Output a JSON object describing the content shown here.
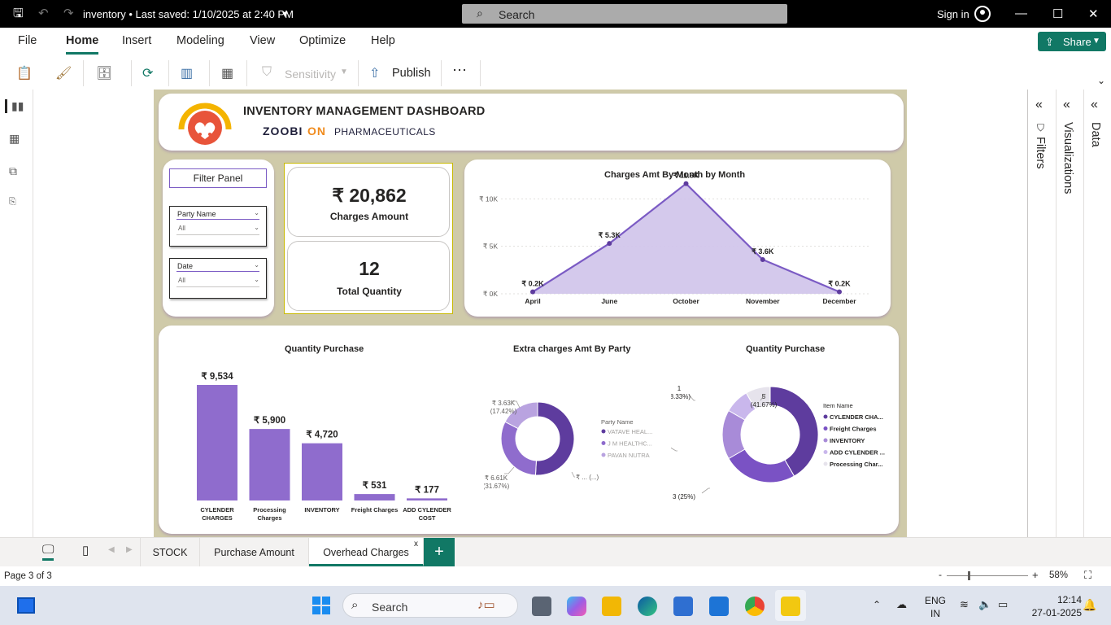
{
  "titlebar": {
    "doc_title": "inventory • Last saved: 1/10/2025 at 2:40 PM",
    "search_placeholder": "Search",
    "signin": "Sign in"
  },
  "ribbon": {
    "menu": [
      "File",
      "Home",
      "Insert",
      "Modeling",
      "View",
      "Optimize",
      "Help"
    ],
    "active_menu": "Home",
    "share_label": "Share",
    "sensitivity_label": "Sensitivity",
    "publish_label": "Publish"
  },
  "report": {
    "title": "INVENTORY MANAGEMENT DASHBOARD",
    "brand_part1": "ZOOBI",
    "brand_part2": "ON",
    "brand_part3": "PHARMACEUTICALS",
    "filter_panel_title": "Filter Panel",
    "slicers": [
      {
        "label": "Party Name",
        "value": "All"
      },
      {
        "label": "Date",
        "value": "All"
      }
    ],
    "kpis": [
      {
        "value": "₹ 20,862",
        "label": "Charges Amount"
      },
      {
        "value": "12",
        "label": "Total Quantity"
      }
    ]
  },
  "chart_data": [
    {
      "type": "area",
      "title": "Charges Amt By Month by Month",
      "categories": [
        "April",
        "June",
        "October",
        "November",
        "December"
      ],
      "values": [
        0.2,
        5.3,
        11.6,
        3.6,
        0.2
      ],
      "data_labels": [
        "₹ 0.2K",
        "₹ 5.3K",
        "₹ 11.6K",
        "₹ 3.6K",
        "₹ 0.2K"
      ],
      "y_ticks": [
        "₹ 0K",
        "₹ 5K",
        "₹ 10K"
      ],
      "y_tick_values": [
        0,
        5,
        10
      ],
      "ylim": [
        0,
        12
      ],
      "grid": true,
      "color": "#7b5bc4"
    },
    {
      "type": "bar",
      "title": "Quantity Purchase",
      "categories": [
        "CYLENDER CHARGES",
        "Processing Charges",
        "INVENTORY",
        "Freight Charges",
        "ADD CYLENDER COST"
      ],
      "values": [
        9534,
        5900,
        4720,
        531,
        177
      ],
      "data_labels": [
        "₹ 9,534",
        "₹ 5,900",
        "₹ 4,720",
        "₹ 531",
        "₹ 177"
      ],
      "ylim": [
        0,
        9534
      ],
      "color": "#8f6ccd"
    },
    {
      "type": "pie",
      "title": "Extra charges Amt By Party",
      "legend_title": "Party Name",
      "labels": [
        "VATAVE HEAL...",
        "J M HEALTHC...",
        "PAVAN NUTRA"
      ],
      "values": [
        10.62,
        6.61,
        3.63
      ],
      "data_labels": [
        "₹ ... (...)",
        "₹ 6.61K (31.67%)",
        "₹ 3.63K (17.42%)"
      ],
      "colors": [
        "#5e3c9e",
        "#8f6ccd",
        "#b9a3e0"
      ],
      "legend_position": "right"
    },
    {
      "type": "pie",
      "title": "Quantity Purchase",
      "legend_title": "Item Name",
      "labels": [
        "CYLENDER CHA...",
        "Freight Charges",
        "INVENTORY",
        "ADD CYLENDER ...",
        "Processing Char..."
      ],
      "values": [
        5,
        3,
        2,
        1,
        1
      ],
      "data_labels": [
        "5 (41.67%)",
        "3 (25%)",
        "2 (...)",
        "1 (8.33%)",
        ""
      ],
      "colors": [
        "#5e3c9e",
        "#7a52c4",
        "#a88bd8",
        "#c9b7ec",
        "#e6e3ec"
      ],
      "legend_position": "right"
    }
  ],
  "panes": {
    "filters": "Filters",
    "visualizations": "Visualizations",
    "data": "Data"
  },
  "page_tabs": [
    {
      "label": "STOCK",
      "active": false
    },
    {
      "label": "Purchase Amount",
      "active": false
    },
    {
      "label": "Overhead Charges",
      "active": true
    }
  ],
  "status": {
    "page_indicator": "Page 3 of 3",
    "zoom": "58%"
  },
  "taskbar": {
    "search_placeholder": "Search",
    "lang1": "ENG",
    "lang2": "IN",
    "time": "12:14",
    "date": "27-01-2025"
  }
}
